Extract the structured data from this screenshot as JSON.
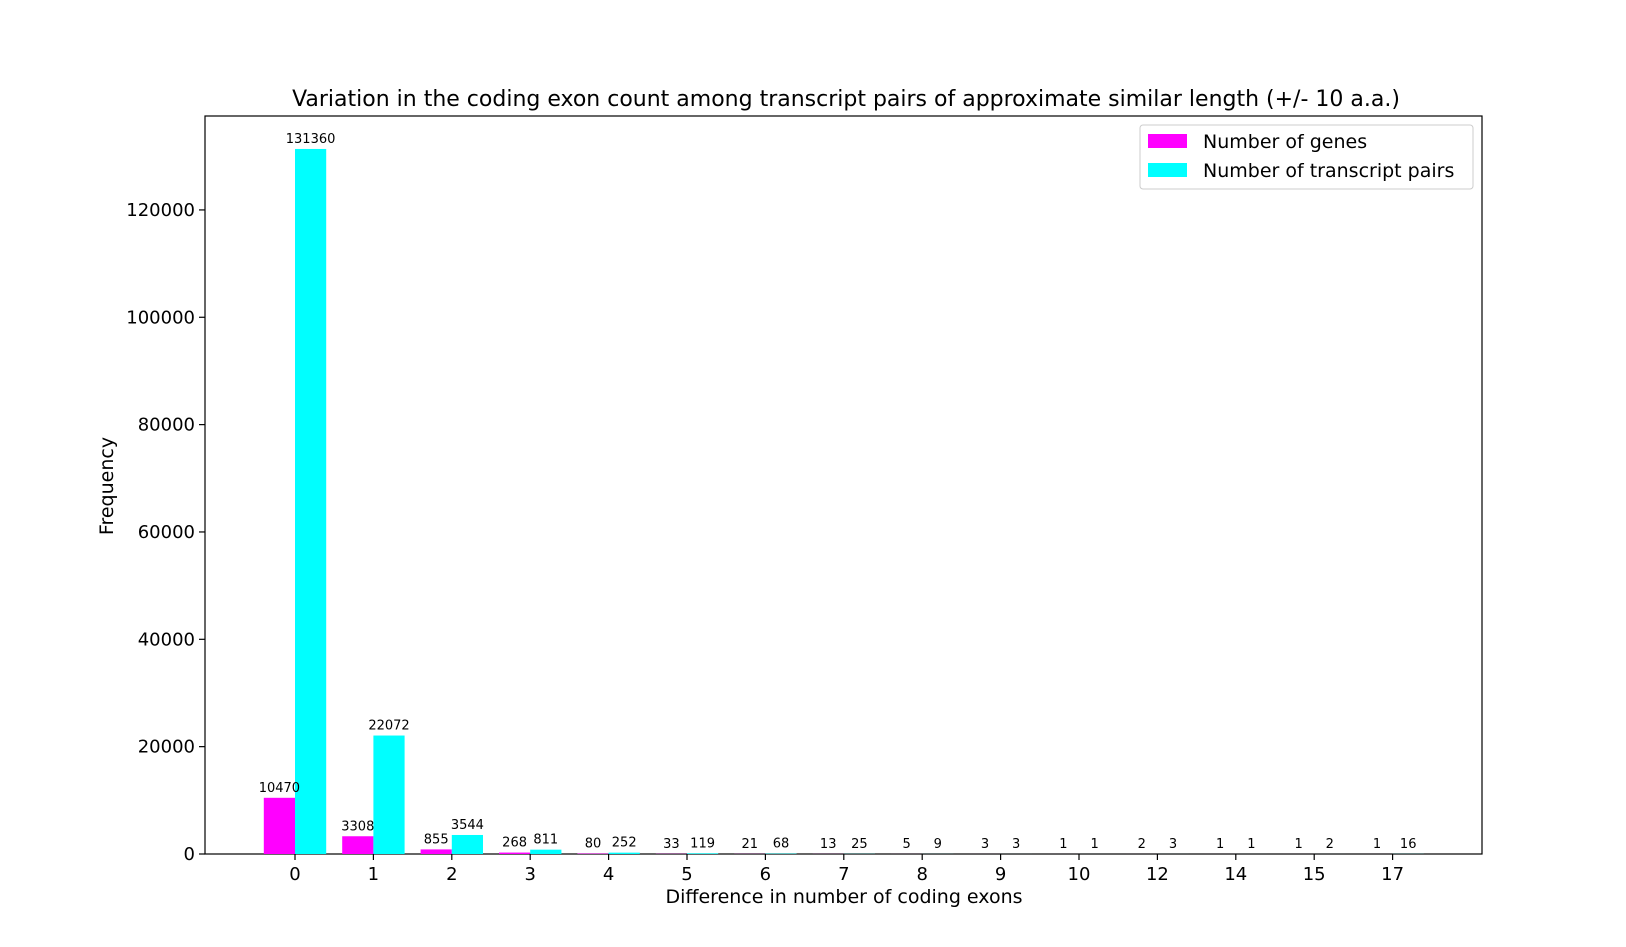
{
  "chart_data": {
    "type": "bar",
    "title": "Variation in the coding exon count among transcript pairs of approximate similar length (+/- 10 a.a.)",
    "xlabel": "Difference in number of coding exons",
    "ylabel": "Frequency",
    "categories": [
      "0",
      "1",
      "2",
      "3",
      "4",
      "5",
      "6",
      "7",
      "8",
      "9",
      "10",
      "12",
      "14",
      "15",
      "17"
    ],
    "series": [
      {
        "name": "Number of genes",
        "color": "#ff00ff",
        "values": [
          10470,
          3308,
          855,
          268,
          80,
          33,
          21,
          13,
          5,
          3,
          1,
          2,
          1,
          1,
          1
        ]
      },
      {
        "name": "Number of transcript pairs",
        "color": "#00ffff",
        "values": [
          131360,
          22072,
          3544,
          811,
          252,
          119,
          68,
          25,
          9,
          3,
          1,
          3,
          1,
          2,
          16
        ]
      }
    ],
    "ylim": [
      0,
      137500
    ],
    "yticks": [
      0,
      20000,
      40000,
      60000,
      80000,
      100000,
      120000
    ],
    "legend_position": "top-right",
    "grid": false
  }
}
